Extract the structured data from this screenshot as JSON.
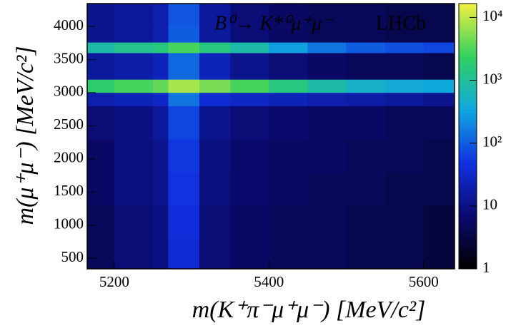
{
  "chart_data": {
    "type": "hist2d",
    "annotations": [
      "B⁰→ K*⁰μ⁺μ⁻",
      "LHCb"
    ],
    "xlabel": "m(K⁺π⁻μ⁺μ⁻) [MeV/c²]",
    "ylabel": "m(μ⁺μ⁻) [MeV/c²]",
    "x_bins": [
      5165,
      5200,
      5250,
      5270,
      5310,
      5350,
      5400,
      5450,
      5500,
      5550,
      5600,
      5640
    ],
    "y_bins": [
      340,
      800,
      1300,
      1800,
      2300,
      2800,
      3000,
      3200,
      3600,
      3760,
      4000,
      4345
    ],
    "values": [
      [
        5,
        8,
        10,
        40,
        8,
        6,
        5,
        5,
        4,
        4,
        3
      ],
      [
        5,
        8,
        10,
        45,
        8,
        6,
        5,
        5,
        4,
        4,
        3
      ],
      [
        6,
        9,
        12,
        50,
        9,
        7,
        6,
        5,
        5,
        4,
        4
      ],
      [
        6,
        9,
        12,
        55,
        10,
        7,
        6,
        6,
        5,
        5,
        4
      ],
      [
        8,
        10,
        15,
        70,
        12,
        8,
        7,
        6,
        6,
        5,
        5
      ],
      [
        20,
        25,
        30,
        150,
        40,
        30,
        25,
        20,
        18,
        15,
        12
      ],
      [
        2000,
        3000,
        4000,
        8000,
        5000,
        3000,
        1500,
        800,
        500,
        400,
        350
      ],
      [
        15,
        18,
        25,
        120,
        25,
        12,
        8,
        6,
        5,
        5,
        4
      ],
      [
        800,
        1200,
        1500,
        3000,
        1500,
        800,
        300,
        150,
        100,
        80,
        70
      ],
      [
        12,
        14,
        20,
        100,
        15,
        8,
        6,
        5,
        5,
        4,
        4
      ],
      [
        12,
        14,
        20,
        90,
        15,
        8,
        6,
        5,
        5,
        4,
        4
      ]
    ],
    "xlim": [
      5165,
      5640
    ],
    "xticks": [
      5200,
      5400,
      5600
    ],
    "ylim": [
      340,
      4345
    ],
    "yticks": [
      500,
      1000,
      1500,
      2000,
      2500,
      3000,
      3500,
      4000
    ],
    "zlim": [
      1,
      16600
    ],
    "zlog": true,
    "zticks": [
      1,
      10,
      {
        "value": 100,
        "label": "10²"
      },
      {
        "value": 1000,
        "label": "10³"
      },
      {
        "value": 10000,
        "label": "10⁴"
      }
    ],
    "colormap": [
      "#000000",
      "#0a0a6e",
      "#1030e0",
      "#10a8e0",
      "#30d060",
      "#f0f040"
    ]
  }
}
